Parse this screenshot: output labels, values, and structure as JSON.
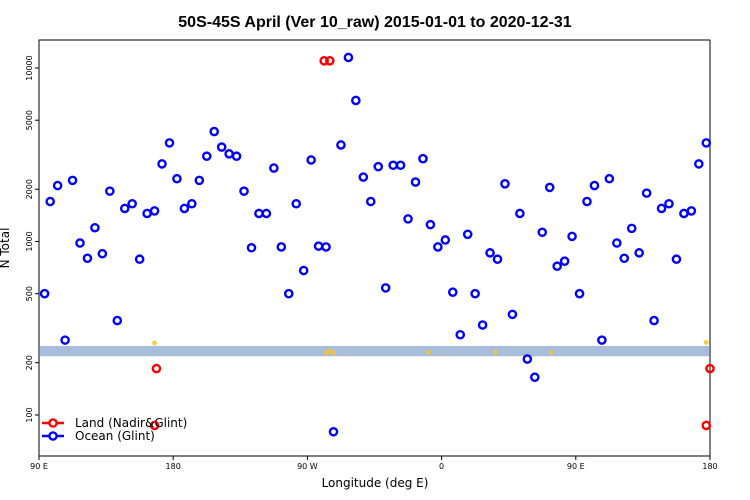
{
  "chart_data": {
    "type": "scatter",
    "title": "50S-45S April (Ver 10_raw)   2015-01-01 to 2020-12-31",
    "xlabel": "Longitude (deg E)",
    "ylabel": "N Total",
    "y_scale": "log",
    "xlim": [
      90,
      450
    ],
    "ylim": [
      58,
      14500
    ],
    "x_ticks": [
      {
        "value": 90,
        "label": "90 E"
      },
      {
        "value": 162,
        "label": "180"
      },
      {
        "value": 234,
        "label": "90 W"
      },
      {
        "value": 306,
        "label": "0"
      },
      {
        "value": 378,
        "label": "90 E"
      },
      {
        "value": 450,
        "label": "180"
      }
    ],
    "y_ticks": [
      {
        "value": 100,
        "label": "100"
      },
      {
        "value": 200,
        "label": "200"
      },
      {
        "value": 500,
        "label": "500"
      },
      {
        "value": 1000,
        "label": "1000"
      },
      {
        "value": 2000,
        "label": "2000"
      },
      {
        "value": 5000,
        "label": "5000"
      },
      {
        "value": 10000,
        "label": "10000"
      }
    ],
    "legend": {
      "position": "bottom-left"
    },
    "band": {
      "y_low": 218,
      "y_high": 250,
      "color": "#a7bddb"
    },
    "series": [
      {
        "name": "Land (Nadir&Glint)",
        "color": "#ff0000",
        "points": [
          [
            152,
            87
          ],
          [
            153,
            185
          ],
          [
            243,
            11000
          ],
          [
            246,
            11000
          ],
          [
            448,
            87
          ],
          [
            450,
            185
          ]
        ]
      },
      {
        "name": "Ocean (Glint)",
        "color": "#0000ff",
        "points": [
          [
            93,
            500
          ],
          [
            96,
            1700
          ],
          [
            100,
            2100
          ],
          [
            104,
            270
          ],
          [
            108,
            2250
          ],
          [
            112,
            980
          ],
          [
            116,
            800
          ],
          [
            120,
            1200
          ],
          [
            124,
            850
          ],
          [
            128,
            1950
          ],
          [
            132,
            350
          ],
          [
            136,
            1550
          ],
          [
            140,
            1650
          ],
          [
            144,
            790
          ],
          [
            148,
            1450
          ],
          [
            152,
            1500
          ],
          [
            156,
            2800
          ],
          [
            160,
            3700
          ],
          [
            164,
            2300
          ],
          [
            168,
            1550
          ],
          [
            172,
            1650
          ],
          [
            176,
            2250
          ],
          [
            180,
            3100
          ],
          [
            184,
            4300
          ],
          [
            188,
            3500
          ],
          [
            192,
            3200
          ],
          [
            196,
            3100
          ],
          [
            200,
            1950
          ],
          [
            204,
            920
          ],
          [
            208,
            1450
          ],
          [
            212,
            1450
          ],
          [
            216,
            2650
          ],
          [
            220,
            930
          ],
          [
            224,
            500
          ],
          [
            228,
            1650
          ],
          [
            232,
            680
          ],
          [
            236,
            2950
          ],
          [
            240,
            940
          ],
          [
            244,
            930
          ],
          [
            248,
            80
          ],
          [
            252,
            3600
          ],
          [
            256,
            11500
          ],
          [
            260,
            6500
          ],
          [
            264,
            2350
          ],
          [
            268,
            1700
          ],
          [
            272,
            2700
          ],
          [
            276,
            540
          ],
          [
            280,
            2750
          ],
          [
            284,
            2750
          ],
          [
            288,
            1350
          ],
          [
            292,
            2200
          ],
          [
            296,
            3000
          ],
          [
            300,
            1250
          ],
          [
            304,
            930
          ],
          [
            308,
            1020
          ],
          [
            312,
            510
          ],
          [
            316,
            290
          ],
          [
            320,
            1100
          ],
          [
            324,
            500
          ],
          [
            328,
            330
          ],
          [
            332,
            860
          ],
          [
            336,
            790
          ],
          [
            340,
            2150
          ],
          [
            344,
            380
          ],
          [
            348,
            1450
          ],
          [
            352,
            210
          ],
          [
            356,
            165
          ],
          [
            360,
            1130
          ],
          [
            364,
            2050
          ],
          [
            368,
            720
          ],
          [
            372,
            770
          ],
          [
            376,
            1070
          ],
          [
            380,
            500
          ],
          [
            384,
            1700
          ],
          [
            388,
            2100
          ],
          [
            392,
            270
          ],
          [
            396,
            2300
          ],
          [
            400,
            980
          ],
          [
            404,
            800
          ],
          [
            408,
            1190
          ],
          [
            412,
            860
          ],
          [
            416,
            1900
          ],
          [
            420,
            350
          ],
          [
            424,
            1550
          ],
          [
            428,
            1650
          ],
          [
            432,
            790
          ],
          [
            436,
            1450
          ],
          [
            440,
            1500
          ],
          [
            444,
            2800
          ],
          [
            448,
            3700
          ]
        ]
      }
    ],
    "faint_marks": {
      "color": "#f4c430",
      "points": [
        [
          152,
          260
        ],
        [
          244,
          228
        ],
        [
          246,
          233
        ],
        [
          248,
          228
        ],
        [
          299,
          230
        ],
        [
          335,
          230
        ],
        [
          365,
          230
        ],
        [
          448,
          262
        ]
      ]
    }
  }
}
